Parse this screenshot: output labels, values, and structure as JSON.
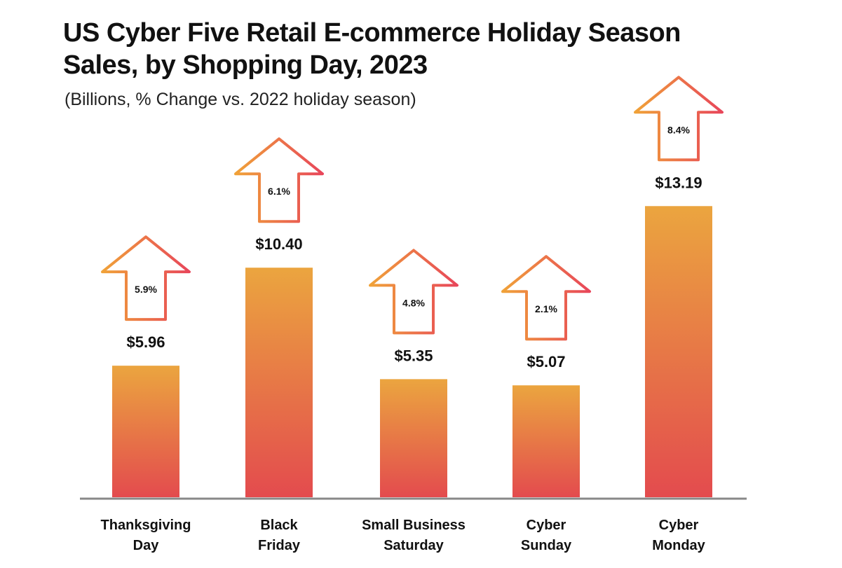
{
  "title_line1": "US Cyber Five Retail E-commerce Holiday Season",
  "title_line2": "Sales, by Shopping Day, 2023",
  "subtitle": "(Billions, % Change vs. 2022 holiday season)",
  "colors": {
    "bar_top": "#EBA53F",
    "bar_bottom": "#E34B4E",
    "arrow_start": "#F0A238",
    "arrow_end": "#E8465A",
    "axis": "#888888"
  },
  "chart_data": {
    "type": "bar",
    "title": "US Cyber Five Retail E-commerce Holiday Season Sales, by Shopping Day, 2023",
    "subtitle": "(Billions, % Change vs. 2022 holiday season)",
    "categories": [
      [
        "Thanksgiving",
        "Day"
      ],
      [
        "Black",
        "Friday"
      ],
      [
        "Small Business",
        "Saturday"
      ],
      [
        "Cyber",
        "Sunday"
      ],
      [
        "Cyber",
        "Monday"
      ]
    ],
    "values": [
      5.96,
      10.4,
      5.35,
      5.07,
      13.19
    ],
    "value_labels": [
      "$5.96",
      "$10.40",
      "$5.35",
      "$5.07",
      "$13.19"
    ],
    "pct_change": [
      "5.9%",
      "6.1%",
      "4.8%",
      "2.1%",
      "8.4%"
    ],
    "ylim": [
      0,
      15.8
    ]
  }
}
